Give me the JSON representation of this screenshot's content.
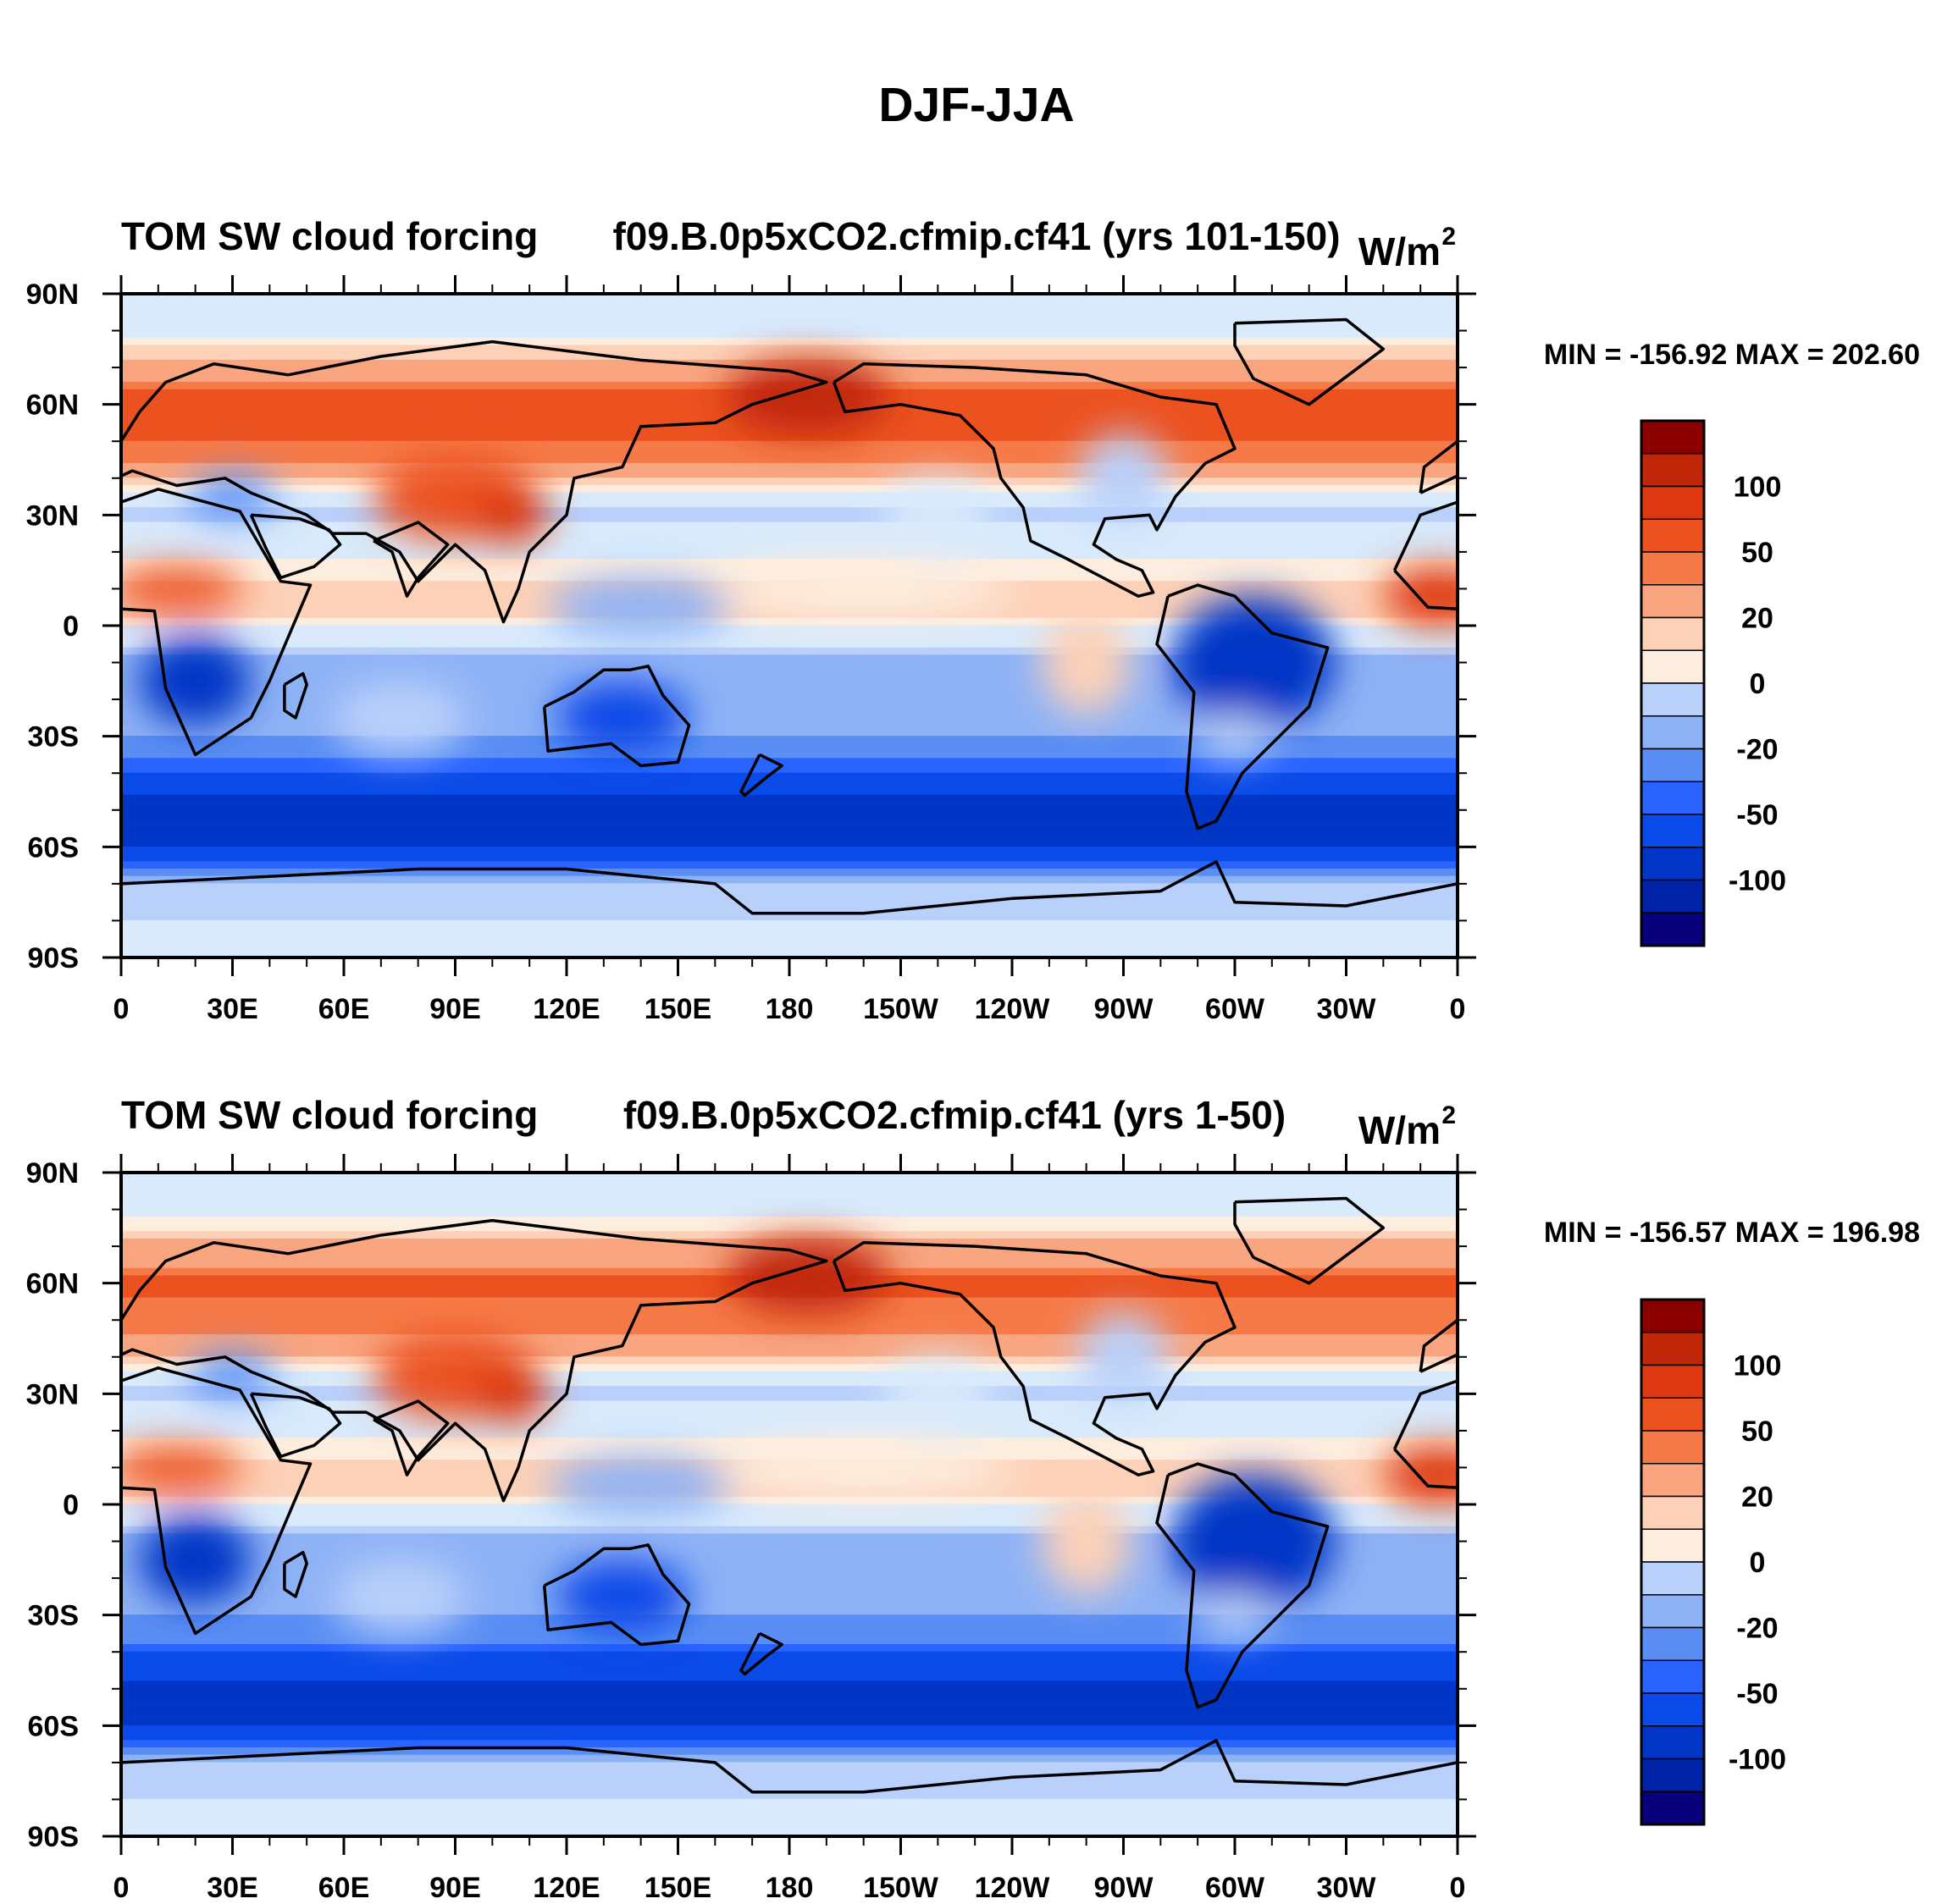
{
  "figure": {
    "title": "DJF-JJA"
  },
  "colors": {
    "scale": [
      "#08007a",
      "#0022a6",
      "#0035c6",
      "#0a4ae8",
      "#2a64ff",
      "#5a8ef4",
      "#8eb2f6",
      "#b9d0fa",
      "#d8eafb",
      "#fdedde",
      "#fdd1b8",
      "#f8a580",
      "#f67a48",
      "#ec5220",
      "#dd3810",
      "#c02608",
      "#8a0000"
    ],
    "land": "#000000"
  },
  "chart_data": [
    {
      "type": "heatmap",
      "panel": "top",
      "left_title": "TOM SW cloud forcing",
      "center_title": "f09.B.0p5xCO2.cfmip.cf41 (yrs 101-150)",
      "units_main": "W/m",
      "units_sup": "2",
      "stats": "MIN = -156.92 MAX = 202.60",
      "min": -156.92,
      "max": 202.6,
      "xlabels": [
        "0",
        "30E",
        "60E",
        "90E",
        "120E",
        "150E",
        "180",
        "150W",
        "120W",
        "90W",
        "60W",
        "30W",
        "0"
      ],
      "ylabels": [
        "90N",
        "60N",
        "30N",
        "0",
        "30S",
        "60S",
        "90S"
      ],
      "xlim": [
        0,
        360
      ],
      "ylim": [
        -90,
        90
      ],
      "colorbar_labels": [
        "100",
        "50",
        "20",
        "0",
        "-20",
        "-50",
        "-100"
      ],
      "colorbar_levels": [
        -150,
        -120,
        -100,
        -80,
        -60,
        -50,
        -40,
        -30,
        -20,
        -10,
        0,
        10,
        20,
        30,
        40,
        50,
        60,
        80,
        100,
        120,
        150
      ],
      "lat_band_profile": [
        {
          "lat": 80,
          "value": 5
        },
        {
          "lat": 60,
          "value": 70
        },
        {
          "lat": 45,
          "value": 55
        },
        {
          "lat": 30,
          "value": -15
        },
        {
          "lat": 15,
          "value": 15
        },
        {
          "lat": 5,
          "value": 30
        },
        {
          "lat": -10,
          "value": -25
        },
        {
          "lat": -30,
          "value": -30
        },
        {
          "lat": -50,
          "value": -90
        },
        {
          "lat": -60,
          "value": -85
        },
        {
          "lat": -70,
          "value": -20
        },
        {
          "lat": -85,
          "value": -5
        }
      ]
    },
    {
      "type": "heatmap",
      "panel": "bottom",
      "left_title": "TOM SW cloud forcing",
      "center_title": "f09.B.0p5xCO2.cfmip.cf41 (yrs 1-50)",
      "units_main": "W/m",
      "units_sup": "2",
      "stats": "MIN = -156.57 MAX = 196.98",
      "min": -156.57,
      "max": 196.98,
      "xlabels": [
        "0",
        "30E",
        "60E",
        "90E",
        "120E",
        "150E",
        "180",
        "150W",
        "120W",
        "90W",
        "60W",
        "30W",
        "0"
      ],
      "ylabels": [
        "90N",
        "60N",
        "30N",
        "0",
        "30S",
        "60S",
        "90S"
      ],
      "xlim": [
        0,
        360
      ],
      "ylim": [
        -90,
        90
      ],
      "colorbar_labels": [
        "100",
        "50",
        "20",
        "0",
        "-20",
        "-50",
        "-100"
      ],
      "colorbar_levels": [
        -150,
        -120,
        -100,
        -80,
        -60,
        -50,
        -40,
        -30,
        -20,
        -10,
        0,
        10,
        20,
        30,
        40,
        50,
        60,
        80,
        100,
        120,
        150
      ],
      "lat_band_profile": [
        {
          "lat": 80,
          "value": 5
        },
        {
          "lat": 60,
          "value": 65
        },
        {
          "lat": 45,
          "value": 50
        },
        {
          "lat": 30,
          "value": -15
        },
        {
          "lat": 15,
          "value": 15
        },
        {
          "lat": 5,
          "value": 30
        },
        {
          "lat": -10,
          "value": -25
        },
        {
          "lat": -30,
          "value": -30
        },
        {
          "lat": -50,
          "value": -85
        },
        {
          "lat": -60,
          "value": -80
        },
        {
          "lat": -70,
          "value": -20
        },
        {
          "lat": -85,
          "value": -5
        }
      ]
    }
  ]
}
